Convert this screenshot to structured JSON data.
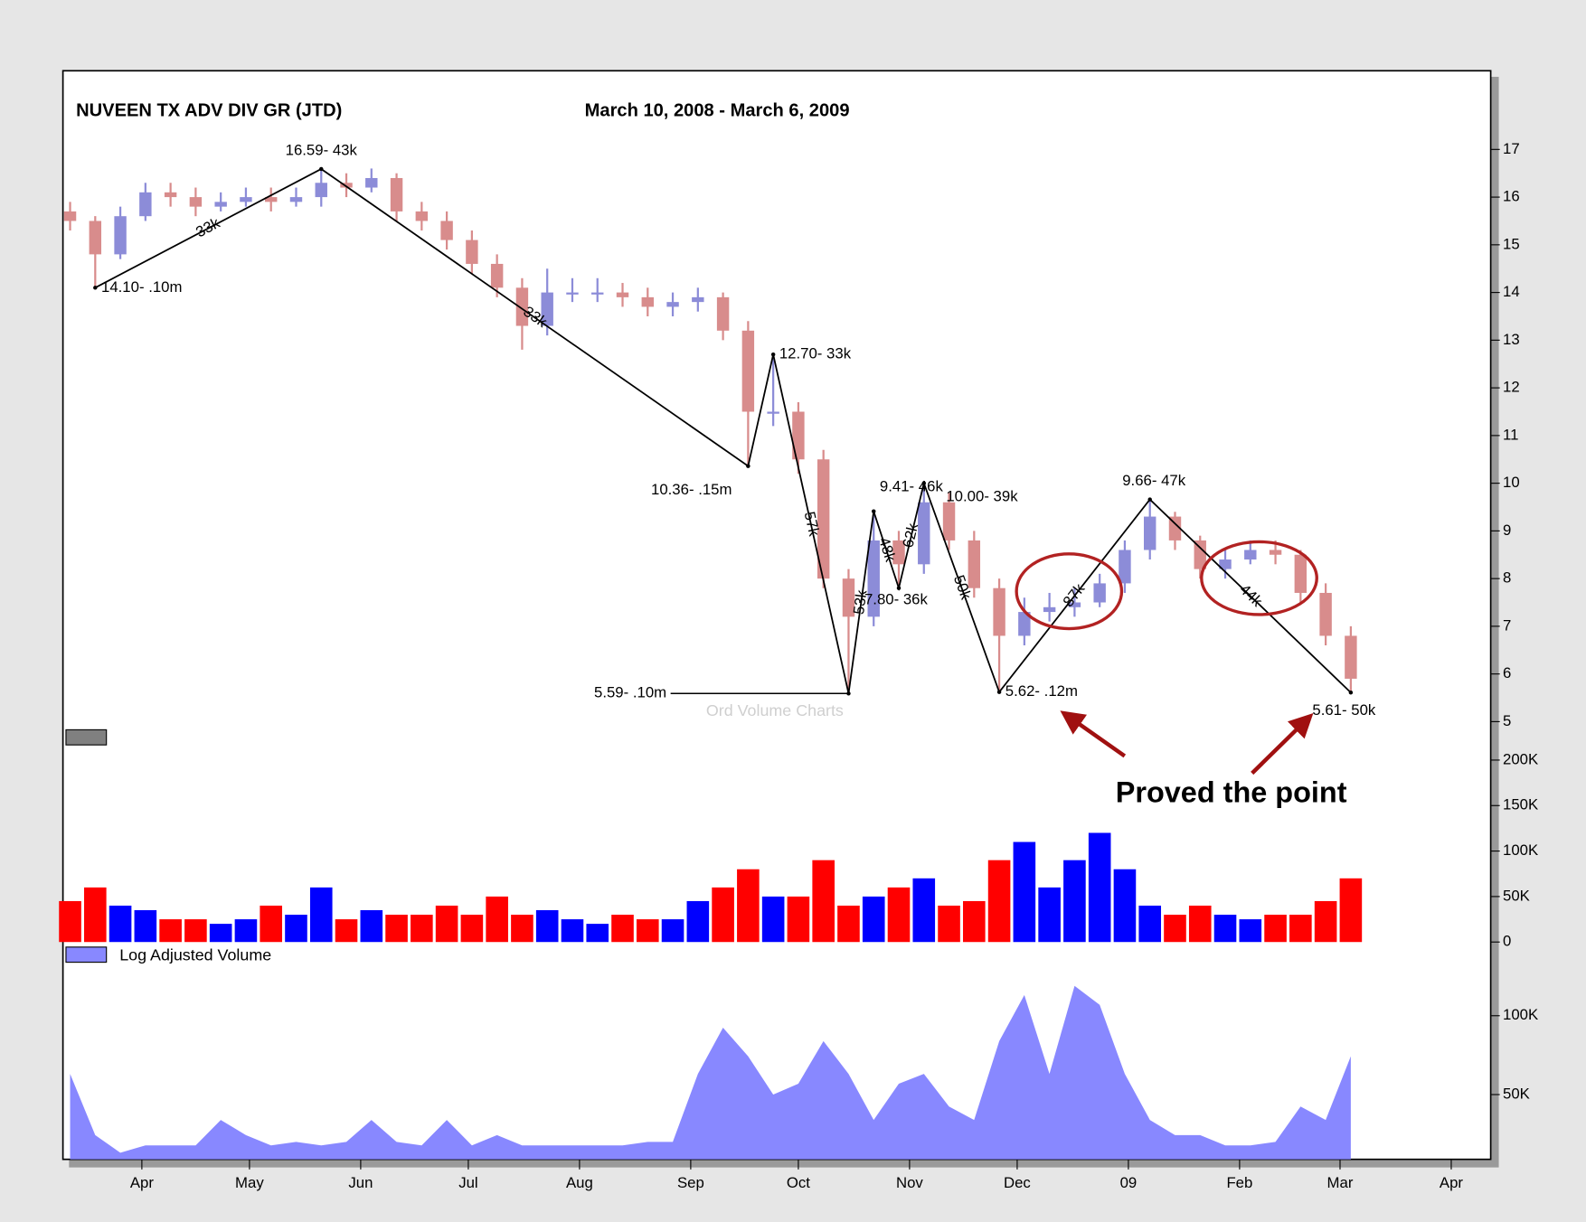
{
  "chart_data": [
    {
      "type": "candlestick",
      "title": "NUVEEN TX ADV DIV GR (JTD)",
      "subtitle": "March 10, 2008 - March 6, 2009",
      "x": [
        2,
        9,
        16,
        23,
        30,
        37,
        44,
        51,
        58,
        65,
        72,
        79,
        86,
        93,
        100,
        107,
        114,
        121,
        128,
        135,
        142,
        149,
        156,
        163,
        170,
        177,
        184,
        191,
        198,
        205,
        212,
        219,
        226,
        233,
        240,
        247,
        254,
        261,
        268,
        275,
        282,
        289,
        296,
        303,
        310,
        317,
        324,
        331,
        338,
        345,
        352,
        359
      ],
      "open": [
        15.7,
        15.5,
        14.8,
        15.6,
        16.1,
        16.0,
        15.8,
        15.9,
        16.0,
        15.9,
        16.0,
        16.3,
        16.2,
        16.4,
        15.7,
        15.5,
        15.1,
        14.6,
        14.1,
        13.3,
        14.0,
        14.0,
        14.0,
        13.9,
        13.7,
        13.8,
        13.9,
        13.2,
        11.5,
        11.5,
        10.5,
        8.0,
        7.2,
        8.8,
        8.3,
        9.6,
        8.8,
        7.8,
        6.8,
        7.3,
        7.4,
        7.5,
        7.9,
        8.6,
        9.3,
        8.8,
        8.2,
        8.4,
        8.6,
        8.5,
        7.7,
        6.8
      ],
      "high": [
        15.9,
        15.6,
        15.8,
        16.3,
        16.3,
        16.2,
        16.1,
        16.2,
        16.2,
        16.2,
        16.59,
        16.5,
        16.6,
        16.5,
        15.9,
        15.7,
        15.3,
        14.8,
        14.3,
        14.5,
        14.3,
        14.3,
        14.2,
        14.1,
        14.0,
        14.1,
        14.0,
        13.4,
        12.7,
        11.7,
        10.7,
        8.2,
        9.41,
        9.0,
        10.0,
        9.8,
        9.0,
        8.0,
        7.6,
        7.7,
        7.8,
        8.1,
        8.8,
        9.66,
        9.4,
        8.9,
        8.6,
        8.8,
        8.8,
        8.6,
        7.9,
        7.0
      ],
      "low": [
        15.3,
        14.1,
        14.7,
        15.5,
        15.8,
        15.6,
        15.7,
        15.8,
        15.7,
        15.8,
        15.8,
        16.0,
        16.1,
        15.5,
        15.3,
        14.9,
        14.4,
        13.9,
        12.8,
        13.1,
        13.8,
        13.8,
        13.7,
        13.5,
        13.5,
        13.6,
        13.0,
        10.36,
        11.2,
        10.2,
        7.8,
        5.59,
        7.0,
        7.8,
        8.1,
        8.6,
        7.6,
        5.62,
        6.6,
        7.1,
        7.2,
        7.4,
        7.7,
        8.4,
        8.6,
        8.0,
        8.0,
        8.3,
        8.3,
        7.5,
        6.6,
        5.61
      ],
      "close": [
        15.5,
        14.8,
        15.6,
        16.1,
        16.0,
        15.8,
        15.9,
        16.0,
        15.9,
        16.0,
        16.3,
        16.2,
        16.4,
        15.7,
        15.5,
        15.1,
        14.6,
        14.1,
        13.3,
        14.0,
        14.0,
        14.0,
        13.9,
        13.7,
        13.8,
        13.9,
        13.2,
        11.5,
        11.5,
        10.5,
        8.0,
        7.2,
        8.8,
        8.3,
        9.6,
        8.8,
        7.8,
        6.8,
        7.3,
        7.4,
        7.5,
        7.9,
        8.6,
        9.3,
        8.8,
        8.2,
        8.4,
        8.6,
        8.5,
        7.7,
        6.8,
        5.9
      ],
      "up_color": "#8c8cd8",
      "down_color": "#d88c8c",
      "xlim": [
        0,
        398
      ],
      "ylim": [
        4.66,
        18.65
      ],
      "yticks": [
        5,
        6,
        7,
        8,
        9,
        10,
        11,
        12,
        13,
        14,
        15,
        16,
        17
      ],
      "swings": {
        "x": [
          9,
          72,
          191,
          198,
          219,
          226,
          233,
          240,
          261,
          303,
          359
        ],
        "values": [
          14.1,
          16.59,
          10.36,
          12.7,
          5.59,
          9.41,
          7.8,
          10.0,
          5.62,
          9.66,
          5.61
        ],
        "labels": [
          "14.10- .10m",
          "16.59- 43k",
          "10.36- .15m",
          "12.70- 33k",
          "5.59- .10m",
          "9.41- 46k",
          "7.80- 36k",
          "10.00- 39k",
          "5.62- .12m",
          "9.66- 47k",
          "5.61- 50k"
        ]
      },
      "segment_labels": [
        "33k",
        "33k",
        null,
        "57k",
        "53k",
        "48k",
        "62k",
        "50k",
        "87k",
        "44k"
      ],
      "watermark": "Ord Volume Charts",
      "annotation": "Proved the point"
    },
    {
      "type": "bar",
      "x": [
        2,
        9,
        16,
        23,
        30,
        37,
        44,
        51,
        58,
        65,
        72,
        79,
        86,
        93,
        100,
        107,
        114,
        121,
        128,
        135,
        142,
        149,
        156,
        163,
        170,
        177,
        184,
        191,
        198,
        205,
        212,
        219,
        226,
        233,
        240,
        247,
        254,
        261,
        268,
        275,
        282,
        289,
        296,
        303,
        310,
        317,
        324,
        331,
        338,
        345,
        352,
        359
      ],
      "values": [
        45000,
        60000,
        40000,
        35000,
        25000,
        25000,
        20000,
        25000,
        40000,
        30000,
        60000,
        25000,
        35000,
        30000,
        30000,
        40000,
        30000,
        50000,
        30000,
        35000,
        25000,
        20000,
        30000,
        25000,
        25000,
        45000,
        60000,
        80000,
        50000,
        50000,
        90000,
        40000,
        50000,
        60000,
        70000,
        40000,
        45000,
        90000,
        110000,
        60000,
        90000,
        120000,
        80000,
        40000,
        30000,
        40000,
        30000,
        25000,
        30000,
        30000,
        45000,
        70000
      ],
      "up_color": "#0000ff",
      "down_color": "#ff0000",
      "xlim": [
        0,
        398
      ],
      "ylim": [
        0,
        220000
      ],
      "yticks": [
        0,
        {
          "value": 50000,
          "label": "50K"
        },
        {
          "value": 100000,
          "label": "100K"
        },
        {
          "value": 150000,
          "label": "150K"
        },
        {
          "value": 200000,
          "label": "200K"
        }
      ]
    },
    {
      "type": "area",
      "legend": "Log Adjusted Volume",
      "x": [
        2,
        9,
        16,
        23,
        30,
        37,
        44,
        51,
        58,
        65,
        72,
        79,
        86,
        93,
        100,
        107,
        114,
        121,
        128,
        135,
        142,
        149,
        156,
        163,
        170,
        177,
        184,
        191,
        198,
        205,
        212,
        219,
        226,
        233,
        240,
        247,
        254,
        261,
        268,
        275,
        282,
        289,
        296,
        303,
        310,
        317,
        324,
        331,
        338,
        345,
        352,
        359
      ],
      "values": [
        60000,
        35000,
        30000,
        32000,
        32000,
        32000,
        40000,
        35000,
        32000,
        33000,
        32000,
        33000,
        40000,
        33000,
        32000,
        40000,
        32000,
        35000,
        32000,
        32000,
        32000,
        32000,
        32000,
        33000,
        33000,
        60000,
        90000,
        70000,
        50000,
        55000,
        80000,
        60000,
        40000,
        55000,
        60000,
        45000,
        40000,
        80000,
        120000,
        60000,
        130000,
        110000,
        60000,
        40000,
        35000,
        35000,
        32000,
        32000,
        33000,
        45000,
        40000,
        70000
      ],
      "color": "#8888ff",
      "log_scale": true,
      "xlim": [
        0,
        398
      ],
      "ylim": [
        28300,
        178000
      ],
      "yticks": [
        {
          "value": 50000,
          "label": "50K"
        },
        {
          "value": 100000,
          "label": "100K"
        }
      ],
      "xticks": [
        {
          "value": 22,
          "label": "Apr"
        },
        {
          "value": 52,
          "label": "May"
        },
        {
          "value": 83,
          "label": "Jun"
        },
        {
          "value": 113,
          "label": "Jul"
        },
        {
          "value": 144,
          "label": "Aug"
        },
        {
          "value": 175,
          "label": "Sep"
        },
        {
          "value": 205,
          "label": "Oct"
        },
        {
          "value": 236,
          "label": "Nov"
        },
        {
          "value": 266,
          "label": "Dec"
        },
        {
          "value": 297,
          "label": "09"
        },
        {
          "value": 328,
          "label": "Feb"
        },
        {
          "value": 356,
          "label": "Mar"
        },
        {
          "value": 387,
          "label": "Apr"
        }
      ]
    }
  ]
}
